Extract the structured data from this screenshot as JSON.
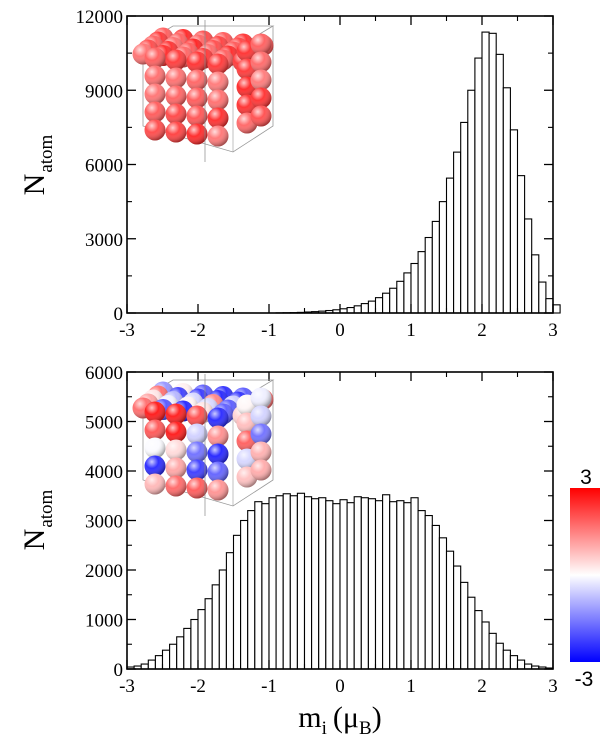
{
  "chart_data": [
    {
      "type": "bar",
      "panel": "top",
      "xlabel": "",
      "ylabel": "N",
      "ylabel_sub": "atom",
      "xlim": [
        -3,
        3
      ],
      "ylim": [
        0,
        12000
      ],
      "xticks": [
        "-3",
        "-2",
        "-1",
        "0",
        "1",
        "2",
        "3"
      ],
      "yticks": [
        "0",
        "3000",
        "6000",
        "9000",
        "12000"
      ],
      "grid": false,
      "bin_start": -3.0,
      "bin_width": 0.1,
      "values": [
        0,
        0,
        0,
        0,
        0,
        0,
        0,
        0,
        0,
        0,
        0,
        0,
        0,
        0,
        0,
        0,
        0,
        0,
        0,
        0,
        0,
        5,
        10,
        15,
        25,
        40,
        55,
        75,
        100,
        130,
        170,
        220,
        290,
        380,
        480,
        620,
        800,
        1000,
        1280,
        1620,
        2000,
        2480,
        3050,
        3700,
        4500,
        5450,
        6500,
        7700,
        9000,
        10300,
        11350,
        11300,
        10450,
        9100,
        7400,
        5550,
        3800,
        2350,
        1250,
        580,
        330
      ]
    },
    {
      "type": "bar",
      "panel": "bottom",
      "xlabel": "m",
      "xlabel_sub": "i",
      "xlabel_unit": "(μ",
      "xlabel_unit_sub": "B",
      "xlabel_close": ")",
      "ylabel": "N",
      "ylabel_sub": "atom",
      "xlim": [
        -3,
        3
      ],
      "ylim": [
        0,
        6000
      ],
      "xticks": [
        "-3",
        "-2",
        "-1",
        "0",
        "1",
        "2",
        "3"
      ],
      "yticks": [
        "0",
        "1000",
        "2000",
        "3000",
        "4000",
        "5000",
        "6000"
      ],
      "grid": false,
      "bin_start": -3.0,
      "bin_width": 0.1,
      "values": [
        40,
        60,
        100,
        180,
        270,
        380,
        500,
        650,
        820,
        1000,
        1200,
        1420,
        1700,
        2000,
        2350,
        2700,
        3000,
        3200,
        3380,
        3340,
        3460,
        3500,
        3540,
        3500,
        3550,
        3480,
        3440,
        3460,
        3400,
        3340,
        3420,
        3360,
        3480,
        3460,
        3440,
        3400,
        3520,
        3380,
        3400,
        3360,
        3460,
        3200,
        3100,
        2900,
        2650,
        2380,
        2080,
        1750,
        1450,
        1180,
        950,
        720,
        520,
        380,
        270,
        180,
        100,
        60,
        40,
        20
      ]
    }
  ],
  "colorbar": {
    "max_label": "3",
    "min_label": "-3",
    "colors": [
      "#ff0000",
      "#ffffff",
      "#0000ff"
    ]
  },
  "insets": [
    {
      "name": "top-spin-cube",
      "coloring": "mostly-red"
    },
    {
      "name": "bottom-spin-cube",
      "coloring": "mixed-red-white-blue"
    }
  ]
}
